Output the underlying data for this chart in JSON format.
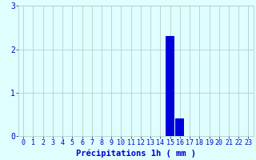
{
  "hours": [
    0,
    1,
    2,
    3,
    4,
    5,
    6,
    7,
    8,
    9,
    10,
    11,
    12,
    13,
    14,
    15,
    16,
    17,
    18,
    19,
    20,
    21,
    22,
    23
  ],
  "values": [
    0,
    0,
    0,
    0,
    0,
    0,
    0,
    0,
    0,
    0,
    0,
    0,
    0,
    0,
    0,
    2.3,
    0.4,
    0,
    0,
    0,
    0,
    0,
    0,
    0
  ],
  "bar_color": "#0000DD",
  "background_color": "#DFFFFF",
  "grid_color": "#BBCCCC",
  "xlabel": "Précipitations 1h ( mm )",
  "ylim": [
    0,
    3
  ],
  "yticks": [
    0,
    1,
    2,
    3
  ],
  "xlim": [
    -0.5,
    23.5
  ],
  "xlabel_fontsize": 7.5,
  "tick_fontsize": 6,
  "tick_color": "#0000CC",
  "grid_linewidth": 0.6
}
